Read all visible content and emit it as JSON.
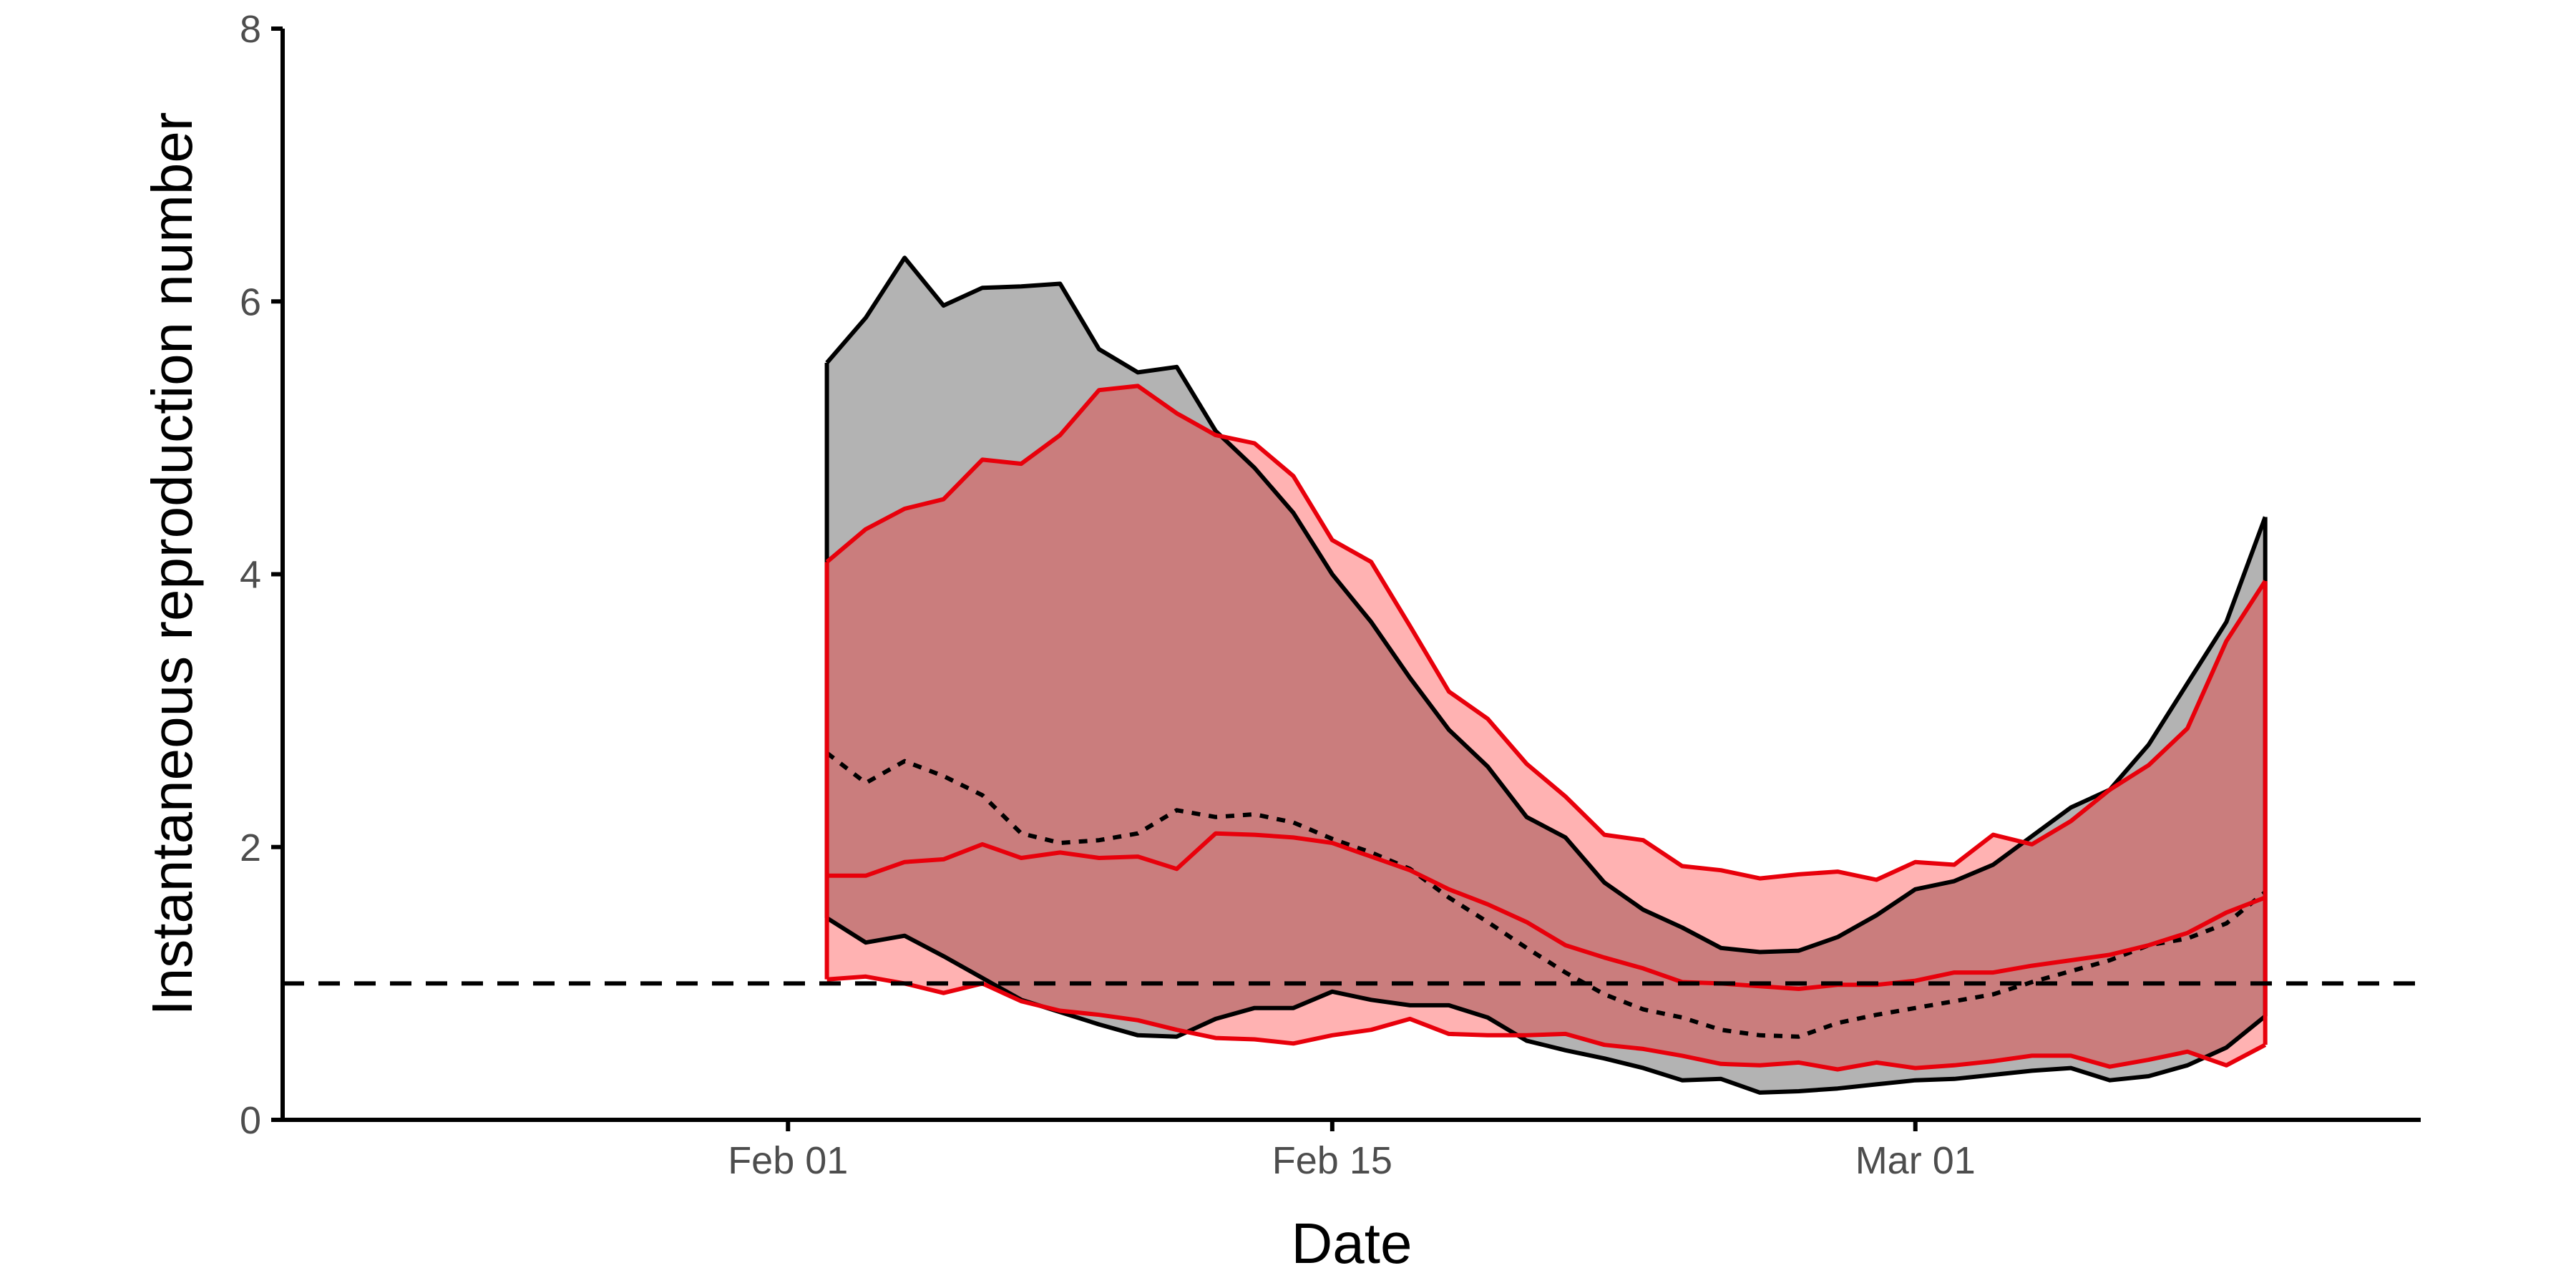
{
  "chart_data": {
    "type": "area",
    "title": "",
    "xlabel": "Date",
    "ylabel": "Instantaneous reproduction number",
    "xlim": [
      "2020-01-19",
      "2020-03-14"
    ],
    "ylim": [
      0,
      8
    ],
    "x_ticks": [
      {
        "date": "2020-02-01",
        "label": "Feb 01"
      },
      {
        "date": "2020-02-15",
        "label": "Feb 15"
      },
      {
        "date": "2020-03-01",
        "label": "Mar 01"
      }
    ],
    "y_ticks": [
      {
        "value": 0,
        "label": "0"
      },
      {
        "value": 2,
        "label": "2"
      },
      {
        "value": 4,
        "label": "4"
      },
      {
        "value": 6,
        "label": "6"
      },
      {
        "value": 8,
        "label": "8"
      }
    ],
    "grid": false,
    "legend": "none",
    "reference_line": {
      "y": 1,
      "style": "dashed",
      "color": "#000000"
    },
    "x": [
      "2020-02-02",
      "2020-02-03",
      "2020-02-04",
      "2020-02-05",
      "2020-02-06",
      "2020-02-07",
      "2020-02-08",
      "2020-02-09",
      "2020-02-10",
      "2020-02-11",
      "2020-02-12",
      "2020-02-13",
      "2020-02-14",
      "2020-02-15",
      "2020-02-16",
      "2020-02-17",
      "2020-02-18",
      "2020-02-19",
      "2020-02-20",
      "2020-02-21",
      "2020-02-22",
      "2020-02-23",
      "2020-02-24",
      "2020-02-25",
      "2020-02-26",
      "2020-02-27",
      "2020-02-28",
      "2020-02-29",
      "2020-03-01",
      "2020-03-02",
      "2020-03-03",
      "2020-03-04",
      "2020-03-05",
      "2020-03-06",
      "2020-03-07",
      "2020-03-08",
      "2020-03-09",
      "2020-03-10"
    ],
    "series": [
      {
        "fill": "#b3b3b3",
        "line_color": "#000000",
        "upper": [
          5.55,
          5.88,
          6.32,
          5.97,
          6.1,
          6.11,
          6.13,
          5.65,
          5.48,
          5.52,
          5.05,
          4.78,
          4.45,
          4.0,
          3.65,
          3.24,
          2.86,
          2.59,
          2.22,
          2.07,
          1.74,
          1.54,
          1.41,
          1.26,
          1.23,
          1.24,
          1.34,
          1.5,
          1.69,
          1.75,
          1.87,
          2.08,
          2.29,
          2.42,
          2.75,
          3.2,
          3.65,
          4.42
        ],
        "lower": [
          1.48,
          1.3,
          1.35,
          1.2,
          1.04,
          0.88,
          0.79,
          0.7,
          0.62,
          0.61,
          0.74,
          0.82,
          0.82,
          0.94,
          0.88,
          0.84,
          0.84,
          0.75,
          0.58,
          0.51,
          0.45,
          0.38,
          0.29,
          0.3,
          0.2,
          0.21,
          0.23,
          0.26,
          0.29,
          0.3,
          0.33,
          0.36,
          0.38,
          0.29,
          0.32,
          0.4,
          0.53,
          0.76
        ],
        "median": [
          2.69,
          2.47,
          2.63,
          2.52,
          2.38,
          2.1,
          2.03,
          2.05,
          2.1,
          2.27,
          2.22,
          2.24,
          2.18,
          2.06,
          1.96,
          1.84,
          1.63,
          1.45,
          1.26,
          1.08,
          0.92,
          0.81,
          0.75,
          0.66,
          0.62,
          0.61,
          0.71,
          0.77,
          0.82,
          0.87,
          0.92,
          1.01,
          1.09,
          1.17,
          1.28,
          1.33,
          1.44,
          1.67
        ],
        "median_style": "dotted"
      },
      {
        "fill": "#ff0000",
        "fill_opacity": 0.3,
        "line_color": "#e8000b",
        "upper": [
          4.09,
          4.33,
          4.48,
          4.55,
          4.84,
          4.81,
          5.02,
          5.35,
          5.38,
          5.18,
          5.02,
          4.96,
          4.72,
          4.25,
          4.09,
          3.62,
          3.14,
          2.94,
          2.61,
          2.37,
          2.09,
          2.05,
          1.86,
          1.83,
          1.77,
          1.8,
          1.82,
          1.76,
          1.89,
          1.87,
          2.09,
          2.02,
          2.19,
          2.42,
          2.6,
          2.87,
          3.51,
          3.95
        ],
        "lower": [
          1.03,
          1.05,
          1.0,
          0.93,
          1.0,
          0.87,
          0.8,
          0.77,
          0.73,
          0.66,
          0.6,
          0.59,
          0.56,
          0.62,
          0.66,
          0.74,
          0.63,
          0.62,
          0.62,
          0.63,
          0.55,
          0.52,
          0.47,
          0.41,
          0.4,
          0.42,
          0.37,
          0.42,
          0.38,
          0.4,
          0.43,
          0.47,
          0.47,
          0.39,
          0.44,
          0.5,
          0.4,
          0.55
        ],
        "median": [
          1.79,
          1.79,
          1.89,
          1.91,
          2.02,
          1.92,
          1.96,
          1.92,
          1.93,
          1.84,
          2.1,
          2.09,
          2.07,
          2.03,
          1.93,
          1.83,
          1.69,
          1.58,
          1.45,
          1.28,
          1.19,
          1.11,
          1.01,
          1.0,
          0.98,
          0.96,
          0.99,
          0.99,
          1.02,
          1.08,
          1.08,
          1.13,
          1.17,
          1.21,
          1.28,
          1.37,
          1.52,
          1.63
        ],
        "median_style": "solid"
      }
    ]
  }
}
